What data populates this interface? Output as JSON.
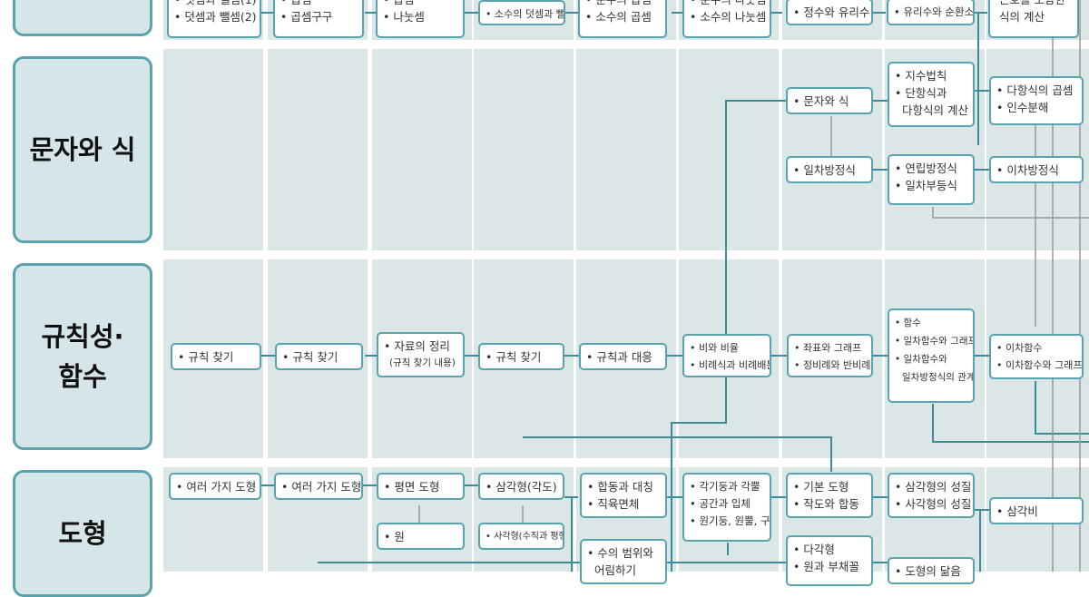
{
  "categories": {
    "letters": "문자와 식",
    "regularity_line1": "규칙성·",
    "regularity_line2": "함수",
    "geometry": "도형"
  },
  "row_numbers": {
    "n1": [
      "• 덧셈과 뺄셈(1)",
      "• 덧셈과 뺄셈(2)"
    ],
    "n2": [
      "• 곱셈",
      "• 곱셈구구"
    ],
    "n3": [
      "• 곱셈",
      "• 나눗셈"
    ],
    "n4": [
      "• 소수의 덧셈과 뺄셈"
    ],
    "n5": [
      "• 분수의 곱셈",
      "• 소수의 곱셈"
    ],
    "n6": [
      "• 분수의 나눗셈",
      "• 소수의 나눗셈"
    ],
    "n7": [
      "• 정수와 유리수"
    ],
    "n8": [
      "• 유리수와 순환소수"
    ],
    "n9": [
      "근호를 포함한",
      "식의 계산"
    ]
  },
  "row_letters": {
    "n1": [
      "• 문자와 식"
    ],
    "n2": [
      "• 지수법칙",
      "• 단항식과",
      "다항식의 계산"
    ],
    "n3": [
      "• 다항식의 곱셈",
      "• 인수분해"
    ],
    "n4": [
      "• 일차방정식"
    ],
    "n5": [
      "• 연립방정식",
      "• 일차부등식"
    ],
    "n6": [
      "• 이차방정식"
    ]
  },
  "row_regularity": {
    "n1": [
      "• 규칙 찾기"
    ],
    "n2": [
      "• 규칙 찾기"
    ],
    "n3": [
      "• 자료의 정리",
      "(규칙 찾기 내용)"
    ],
    "n4": [
      "• 규칙 찾기"
    ],
    "n5": [
      "• 규칙과 대응"
    ],
    "n6": [
      "• 비와 비율",
      "• 비례식과 비례배분"
    ],
    "n7": [
      "• 좌표와 그래프",
      "• 정비례와 반비례"
    ],
    "n8": [
      "• 함수",
      "• 일차함수와 그래프",
      "• 일차함수와",
      "일차방정식의 관계"
    ],
    "n9": [
      "• 이차함수",
      "• 이차함수와 그래프"
    ]
  },
  "row_geometry": {
    "n1": [
      "• 여러 가지 도형"
    ],
    "n2": [
      "• 여러 가지 도형"
    ],
    "n3": [
      "• 평면 도형"
    ],
    "n3b": [
      "• 원"
    ],
    "n4": [
      "• 삼각형(각도)"
    ],
    "n4b": [
      "• 사각형(수직과 평행)"
    ],
    "n5": [
      "• 합동과 대칭",
      "• 직육면체"
    ],
    "n5b": [
      "• 수의 범위와",
      "어림하기"
    ],
    "n6": [
      "• 각기둥과 각뿔",
      "• 공간과 입체",
      "• 원기둥, 원뿔, 구"
    ],
    "n7": [
      "• 기본 도형",
      "• 작도와 합동"
    ],
    "n7b": [
      "• 다각형",
      "• 원과 부채꼴"
    ],
    "n8": [
      "• 삼각형의 성질",
      "• 사각형의 성질"
    ],
    "n8b": [
      "• 도형의 닮음"
    ],
    "n9": [
      "• 삼각비"
    ]
  },
  "colors": {
    "background": "#ffffff",
    "column_fill": "#dbe6e6",
    "accent": "#5aa3ad",
    "category_fill": "#d6e6e8",
    "connector": "#3f8c98",
    "connector_gray": "#999999"
  }
}
